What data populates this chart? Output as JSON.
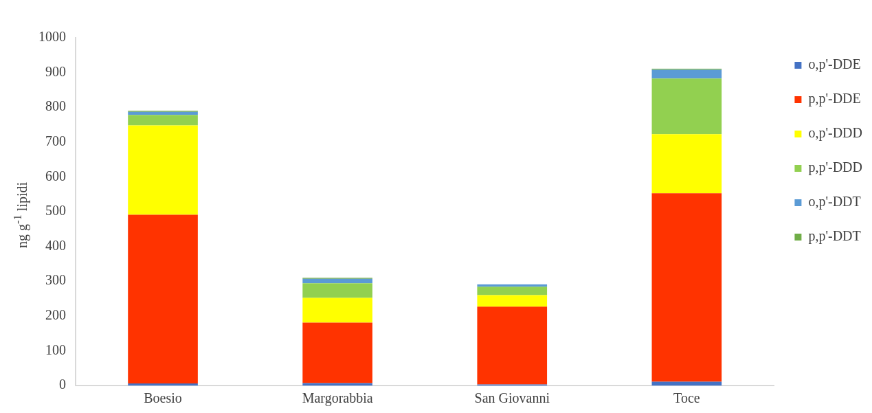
{
  "chart_data": {
    "type": "bar",
    "ylabel": "ng g$^{-1}$ lipidi",
    "categories": [
      "Boesio",
      "Margorabbia",
      "San Giovanni",
      "Toce"
    ],
    "stacked": true,
    "ylim": [
      0,
      1000
    ],
    "yticks": [
      0,
      100,
      200,
      300,
      400,
      500,
      600,
      700,
      800,
      900,
      1000
    ],
    "grid": false,
    "legend": "top right",
    "series": [
      {
        "name": "o,p'-DDE",
        "color": "#4472c4",
        "values": [
          6,
          7,
          3,
          11
        ]
      },
      {
        "name": "p,p'-DDE",
        "color": "#ff3300",
        "values": [
          485,
          174,
          224,
          542
        ]
      },
      {
        "name": "o,p'-DDD",
        "color": "#ffff00",
        "values": [
          257,
          71,
          33,
          170
        ]
      },
      {
        "name": "p,p'-DDD",
        "color": "#92d050",
        "values": [
          30,
          42,
          24,
          160
        ]
      },
      {
        "name": "o,p'-DDT",
        "color": "#5b9bd5",
        "values": [
          9,
          13,
          7,
          25
        ]
      },
      {
        "name": "p,p'-DDT",
        "color": "#70ad47",
        "values": [
          3,
          3,
          0,
          3
        ]
      }
    ]
  }
}
